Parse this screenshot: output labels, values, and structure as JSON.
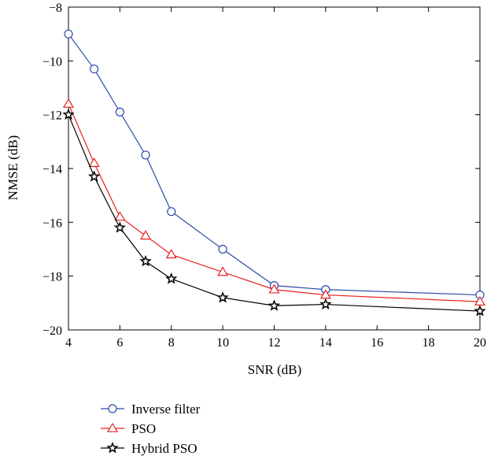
{
  "chart_data": {
    "type": "line",
    "xlabel": "SNR (dB)",
    "ylabel": "NMSE (dB)",
    "xlim": [
      4,
      20
    ],
    "ylim": [
      -20,
      -8
    ],
    "xticks": [
      4,
      6,
      8,
      10,
      12,
      14,
      16,
      18,
      20
    ],
    "yticks": [
      -20,
      -18,
      -16,
      -14,
      -12,
      -10,
      -8
    ],
    "xtick_labels": [
      "4",
      "6",
      "8",
      "10",
      "12",
      "14",
      "16",
      "18",
      "20"
    ],
    "ytick_labels": [
      "−20",
      "−18",
      "−16",
      "−14",
      "−12",
      "−10",
      "−8"
    ],
    "grid": false,
    "legend_position": "below",
    "x": [
      4,
      5,
      6,
      7,
      8,
      10,
      12,
      14,
      20
    ],
    "series": [
      {
        "name": "Inverse filter",
        "color": "#2a4aa8",
        "marker": "circle",
        "values": [
          -9.0,
          -10.3,
          -11.9,
          -13.5,
          -15.6,
          -17.0,
          -18.35,
          -18.5,
          -18.7
        ]
      },
      {
        "name": "PSO",
        "color": "#e82020",
        "marker": "triangle",
        "values": [
          -11.6,
          -13.8,
          -15.8,
          -16.5,
          -17.2,
          -17.85,
          -18.5,
          -18.7,
          -18.95
        ]
      },
      {
        "name": "Hybrid PSO",
        "color": "#000000",
        "marker": "star",
        "values": [
          -12.0,
          -14.3,
          -16.2,
          -17.45,
          -18.1,
          -18.8,
          -19.1,
          -19.05,
          -19.3
        ]
      }
    ]
  }
}
